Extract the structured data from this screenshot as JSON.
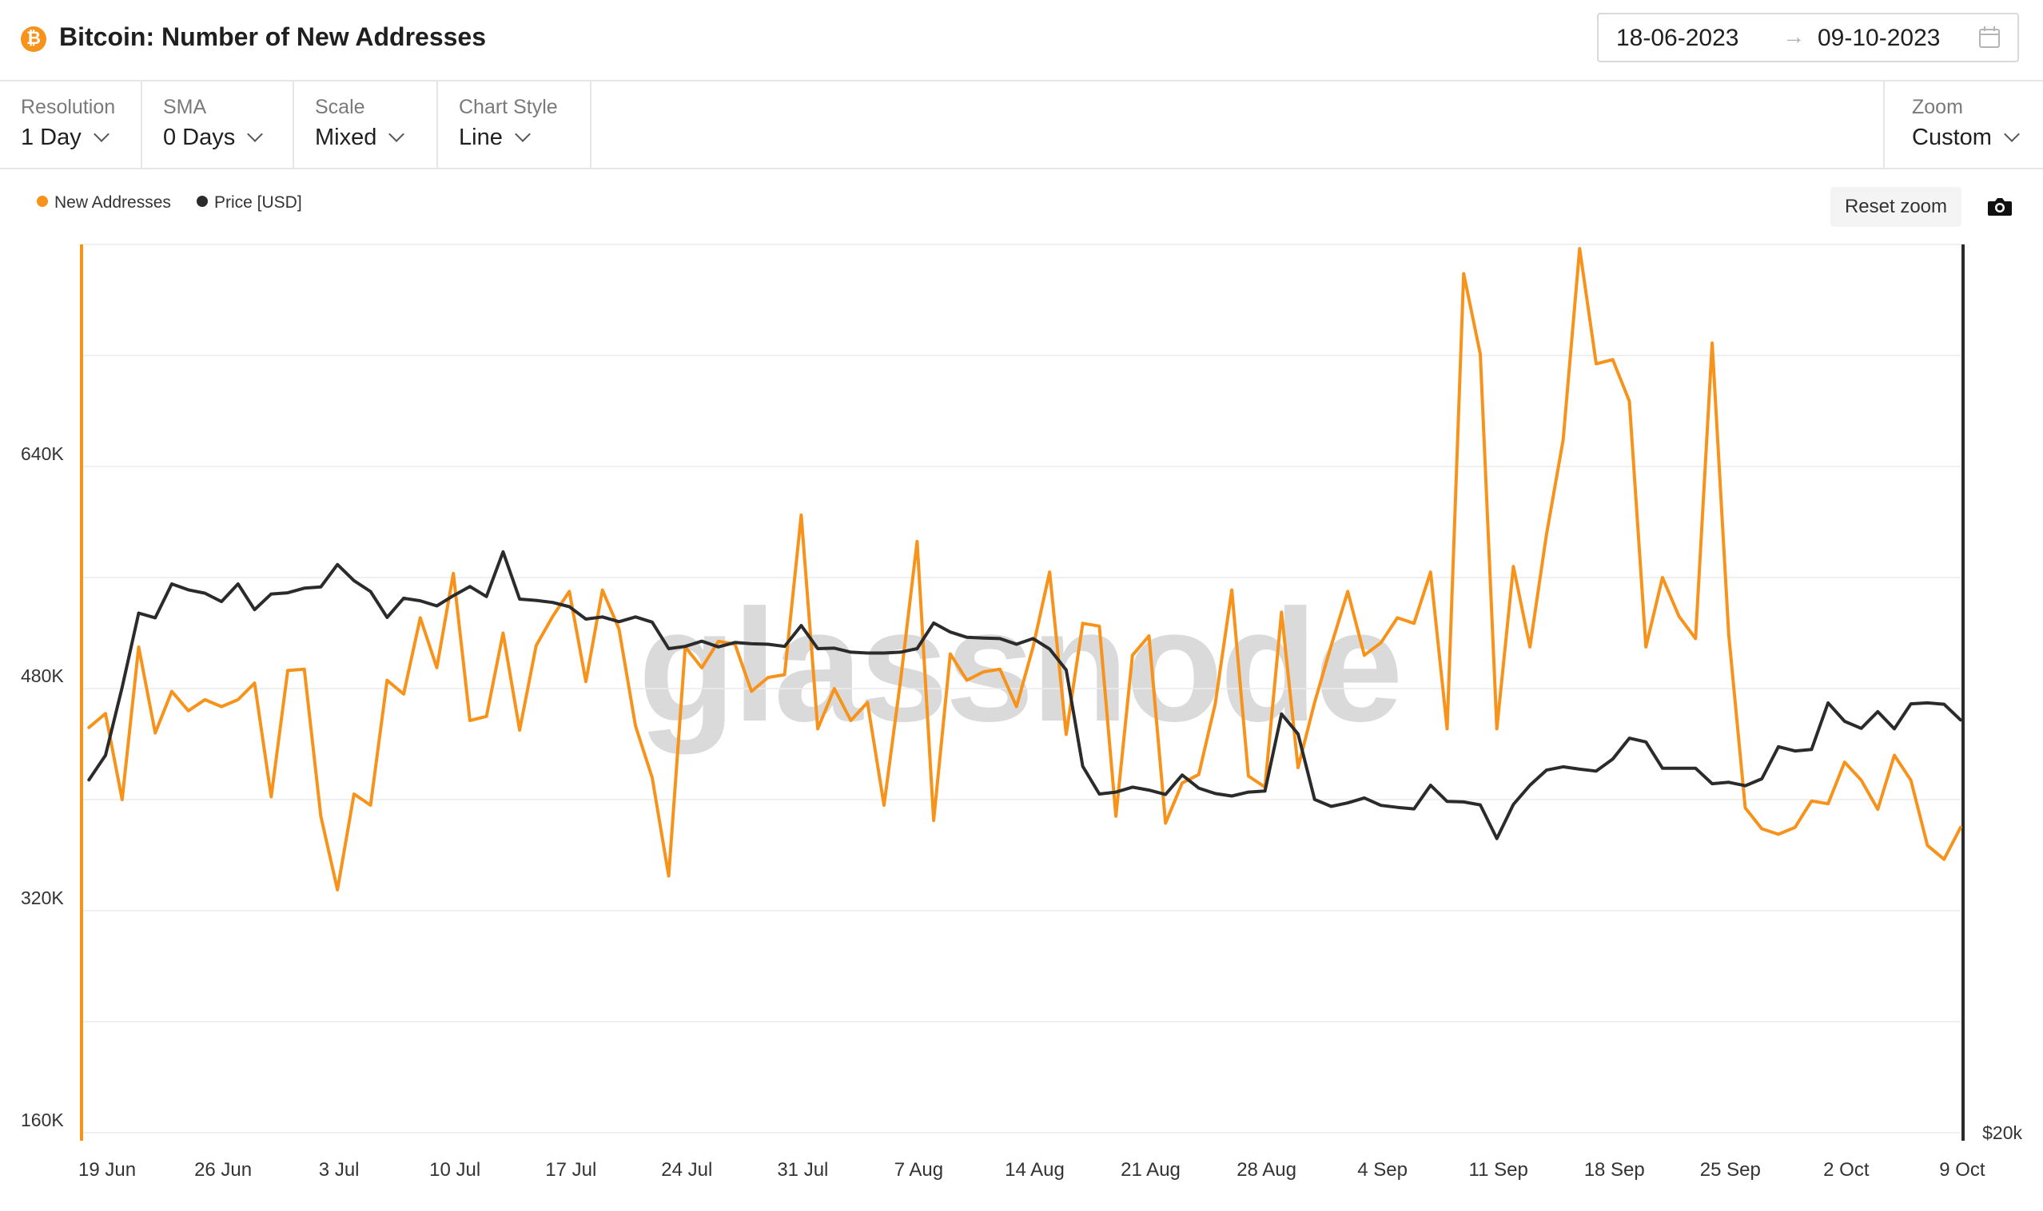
{
  "header": {
    "icon": "bitcoin-icon",
    "title": "Bitcoin: Number of New Addresses",
    "date_start": "18-06-2023",
    "date_arrow": "→",
    "date_end": "09-10-2023",
    "calendar_icon": "calendar-icon"
  },
  "controls": {
    "resolution": {
      "label": "Resolution",
      "value": "1 Day"
    },
    "sma": {
      "label": "SMA",
      "value": "0 Days"
    },
    "scale": {
      "label": "Scale",
      "value": "Mixed"
    },
    "chart_style": {
      "label": "Chart Style",
      "value": "Line"
    },
    "zoom": {
      "label": "Zoom",
      "value": "Custom"
    }
  },
  "actions": {
    "reset_zoom": "Reset zoom",
    "screenshot_icon": "camera-icon"
  },
  "watermark": "glassnode",
  "colors": {
    "new_addresses": "#f7931a",
    "price": "#2b2b2b",
    "grid": "#ececec",
    "axis_text": "#333333"
  },
  "chart_data": {
    "type": "line",
    "title": "Bitcoin: Number of New Addresses",
    "x_tick_labels": [
      "19 Jun",
      "26 Jun",
      "3 Jul",
      "10 Jul",
      "17 Jul",
      "24 Jul",
      "31 Jul",
      "7 Aug",
      "14 Aug",
      "21 Aug",
      "28 Aug",
      "4 Sep",
      "11 Sep",
      "18 Sep",
      "25 Sep",
      "2 Oct",
      "9 Oct"
    ],
    "x_start": "2023-06-18",
    "x_end": "2023-10-09",
    "y_left_ticks": [
      "160K",
      "320K",
      "480K",
      "640K"
    ],
    "y_left_tick_values": [
      160000,
      320000,
      480000,
      640000
    ],
    "ylim_left": [
      160000,
      800000
    ],
    "y_right_ticks": [
      "$20k"
    ],
    "y_right_tick_values": [
      20000
    ],
    "y_right_scale": "log",
    "ylim_right": [
      20000,
      40000
    ],
    "grid": true,
    "legend_position": "top-left",
    "series": [
      {
        "name": "New Addresses",
        "axis": "left",
        "x": [
          "2023-06-18",
          "2023-06-19",
          "2023-06-20",
          "2023-06-21",
          "2023-06-22",
          "2023-06-23",
          "2023-06-24",
          "2023-06-25",
          "2023-06-26",
          "2023-06-27",
          "2023-06-28",
          "2023-06-29",
          "2023-06-30",
          "2023-07-01",
          "2023-07-02",
          "2023-07-03",
          "2023-07-04",
          "2023-07-05",
          "2023-07-06",
          "2023-07-07",
          "2023-07-08",
          "2023-07-09",
          "2023-07-10",
          "2023-07-11",
          "2023-07-12",
          "2023-07-13",
          "2023-07-14",
          "2023-07-15",
          "2023-07-16",
          "2023-07-17",
          "2023-07-18",
          "2023-07-19",
          "2023-07-20",
          "2023-07-21",
          "2023-07-22",
          "2023-07-23",
          "2023-07-24",
          "2023-07-25",
          "2023-07-26",
          "2023-07-27",
          "2023-07-28",
          "2023-07-29",
          "2023-07-30",
          "2023-07-31",
          "2023-08-01",
          "2023-08-02",
          "2023-08-03",
          "2023-08-04",
          "2023-08-05",
          "2023-08-06",
          "2023-08-07",
          "2023-08-08",
          "2023-08-09",
          "2023-08-10",
          "2023-08-11",
          "2023-08-12",
          "2023-08-13",
          "2023-08-14",
          "2023-08-15",
          "2023-08-16",
          "2023-08-17",
          "2023-08-18",
          "2023-08-19",
          "2023-08-20",
          "2023-08-21",
          "2023-08-22",
          "2023-08-23",
          "2023-08-24",
          "2023-08-25",
          "2023-08-26",
          "2023-08-27",
          "2023-08-28",
          "2023-08-29",
          "2023-08-30",
          "2023-08-31",
          "2023-09-01",
          "2023-09-02",
          "2023-09-03",
          "2023-09-04",
          "2023-09-05",
          "2023-09-06",
          "2023-09-07",
          "2023-09-08",
          "2023-09-09",
          "2023-09-10",
          "2023-09-11",
          "2023-09-12",
          "2023-09-13",
          "2023-09-14",
          "2023-09-15",
          "2023-09-16",
          "2023-09-17",
          "2023-09-18",
          "2023-09-19",
          "2023-09-20",
          "2023-09-21",
          "2023-09-22",
          "2023-09-23",
          "2023-09-24",
          "2023-09-25",
          "2023-09-26",
          "2023-09-27",
          "2023-09-28",
          "2023-09-29",
          "2023-09-30",
          "2023-10-01",
          "2023-10-02",
          "2023-10-03",
          "2023-10-04",
          "2023-10-05",
          "2023-10-06",
          "2023-10-07",
          "2023-10-08",
          "2023-10-09"
        ],
        "values": [
          452000,
          462000,
          400000,
          510000,
          448000,
          478000,
          464000,
          472000,
          467000,
          472000,
          484000,
          402000,
          493000,
          494000,
          388000,
          335000,
          404000,
          396000,
          486000,
          476000,
          531000,
          495000,
          563000,
          457000,
          460000,
          520000,
          450000,
          511000,
          532000,
          550000,
          485000,
          551000,
          523000,
          453000,
          416000,
          345000,
          510000,
          495000,
          514000,
          512000,
          478000,
          488000,
          490000,
          605000,
          451000,
          480000,
          457000,
          470000,
          396000,
          486000,
          586000,
          385000,
          505000,
          486000,
          492000,
          494000,
          467000,
          510000,
          564000,
          447000,
          527000,
          525000,
          388000,
          504000,
          518000,
          383000,
          412000,
          418000,
          469000,
          551000,
          417000,
          409000,
          535000,
          423000,
          470000,
          511000,
          550000,
          504000,
          513000,
          531000,
          527000,
          564000,
          451000,
          779000,
          721000,
          451000,
          568000,
          510000,
          591000,
          659000,
          797000,
          714000,
          717000,
          687000,
          510000,
          560000,
          532000,
          516000,
          729000,
          519000,
          394000,
          379000,
          375000,
          380000,
          399000,
          397000,
          427000,
          414000,
          393000,
          432000,
          414000,
          367000,
          357000,
          380000
        ]
      },
      {
        "name": "Price [USD]",
        "axis": "right",
        "x": [
          "2023-06-18",
          "2023-06-19",
          "2023-06-20",
          "2023-06-21",
          "2023-06-22",
          "2023-06-23",
          "2023-06-24",
          "2023-06-25",
          "2023-06-26",
          "2023-06-27",
          "2023-06-28",
          "2023-06-29",
          "2023-06-30",
          "2023-07-01",
          "2023-07-02",
          "2023-07-03",
          "2023-07-04",
          "2023-07-05",
          "2023-07-06",
          "2023-07-07",
          "2023-07-08",
          "2023-07-09",
          "2023-07-10",
          "2023-07-11",
          "2023-07-12",
          "2023-07-13",
          "2023-07-14",
          "2023-07-15",
          "2023-07-16",
          "2023-07-17",
          "2023-07-18",
          "2023-07-19",
          "2023-07-20",
          "2023-07-21",
          "2023-07-22",
          "2023-07-23",
          "2023-07-24",
          "2023-07-25",
          "2023-07-26",
          "2023-07-27",
          "2023-07-28",
          "2023-07-29",
          "2023-07-30",
          "2023-07-31",
          "2023-08-01",
          "2023-08-02",
          "2023-08-03",
          "2023-08-04",
          "2023-08-05",
          "2023-08-06",
          "2023-08-07",
          "2023-08-08",
          "2023-08-09",
          "2023-08-10",
          "2023-08-11",
          "2023-08-12",
          "2023-08-13",
          "2023-08-14",
          "2023-08-15",
          "2023-08-16",
          "2023-08-17",
          "2023-08-18",
          "2023-08-19",
          "2023-08-20",
          "2023-08-21",
          "2023-08-22",
          "2023-08-23",
          "2023-08-24",
          "2023-08-25",
          "2023-08-26",
          "2023-08-27",
          "2023-08-28",
          "2023-08-29",
          "2023-08-30",
          "2023-08-31",
          "2023-09-01",
          "2023-09-02",
          "2023-09-03",
          "2023-09-04",
          "2023-09-05",
          "2023-09-06",
          "2023-09-07",
          "2023-09-08",
          "2023-09-09",
          "2023-09-10",
          "2023-09-11",
          "2023-09-12",
          "2023-09-13",
          "2023-09-14",
          "2023-09-15",
          "2023-09-16",
          "2023-09-17",
          "2023-09-18",
          "2023-09-19",
          "2023-09-20",
          "2023-09-21",
          "2023-09-22",
          "2023-09-23",
          "2023-09-24",
          "2023-09-25",
          "2023-09-26",
          "2023-09-27",
          "2023-09-28",
          "2023-09-29",
          "2023-09-30",
          "2023-10-01",
          "2023-10-02",
          "2023-10-03",
          "2023-10-04",
          "2023-10-05",
          "2023-10-06",
          "2023-10-07",
          "2023-10-08",
          "2023-10-09"
        ],
        "values": [
          26340,
          26850,
          28310,
          30000,
          29890,
          30690,
          30550,
          30470,
          30270,
          30690,
          30080,
          30450,
          30480,
          30590,
          30620,
          31160,
          30770,
          30510,
          29900,
          30350,
          30290,
          30170,
          30410,
          30630,
          30390,
          31470,
          30330,
          30300,
          30250,
          30150,
          29860,
          29910,
          29800,
          29910,
          29790,
          29180,
          29230,
          29350,
          29220,
          29320,
          29290,
          29280,
          29230,
          29710,
          29180,
          29190,
          29100,
          29080,
          29080,
          29100,
          29180,
          29770,
          29560,
          29440,
          29420,
          29410,
          29280,
          29410,
          29170,
          28700,
          26620,
          26050,
          26090,
          26190,
          26130,
          26040,
          26440,
          26170,
          26060,
          26010,
          26090,
          26110,
          27730,
          27300,
          25940,
          25800,
          25870,
          25970,
          25820,
          25780,
          25750,
          26230,
          25900,
          25890,
          25830,
          25160,
          25840,
          26230,
          26540,
          26610,
          26560,
          26520,
          26770,
          27210,
          27130,
          26580,
          26580,
          26580,
          26260,
          26290,
          26220,
          26360,
          27030,
          26940,
          26970,
          27970,
          27570,
          27420,
          27780,
          27410,
          27950,
          27970,
          27940,
          27600
        ]
      }
    ]
  }
}
